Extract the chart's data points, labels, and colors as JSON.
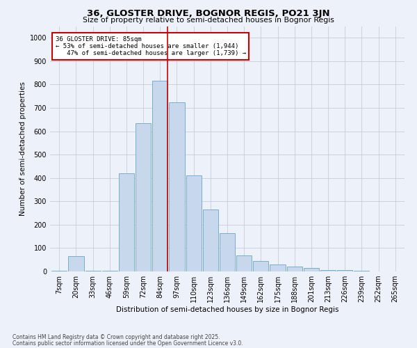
{
  "title": "36, GLOSTER DRIVE, BOGNOR REGIS, PO21 3JN",
  "subtitle": "Size of property relative to semi-detached houses in Bognor Regis",
  "xlabel": "Distribution of semi-detached houses by size in Bognor Regis",
  "ylabel": "Number of semi-detached properties",
  "categories": [
    "7sqm",
    "20sqm",
    "33sqm",
    "46sqm",
    "59sqm",
    "72sqm",
    "84sqm",
    "97sqm",
    "110sqm",
    "123sqm",
    "136sqm",
    "149sqm",
    "162sqm",
    "175sqm",
    "188sqm",
    "201sqm",
    "213sqm",
    "226sqm",
    "239sqm",
    "252sqm",
    "265sqm"
  ],
  "bar_heights": [
    3,
    65,
    3,
    3,
    420,
    635,
    815,
    725,
    410,
    265,
    165,
    70,
    45,
    30,
    20,
    15,
    5,
    5,
    2,
    1,
    1
  ],
  "property_bin_idx": 6,
  "property_size": 85,
  "pct_smaller": 53,
  "pct_larger": 47,
  "n_smaller": 1944,
  "n_larger": 1739,
  "bar_color": "#c8d8ec",
  "bar_edge_color": "#7aadcc",
  "line_color": "#cc0000",
  "annotation_edge_color": "#cc0000",
  "background_color": "#edf1f9",
  "grid_color": "#c8ccd8",
  "ylim_max": 1050,
  "yticks": [
    0,
    100,
    200,
    300,
    400,
    500,
    600,
    700,
    800,
    900,
    1000
  ],
  "footer_line1": "Contains HM Land Registry data © Crown copyright and database right 2025.",
  "footer_line2": "Contains public sector information licensed under the Open Government Licence v3.0."
}
